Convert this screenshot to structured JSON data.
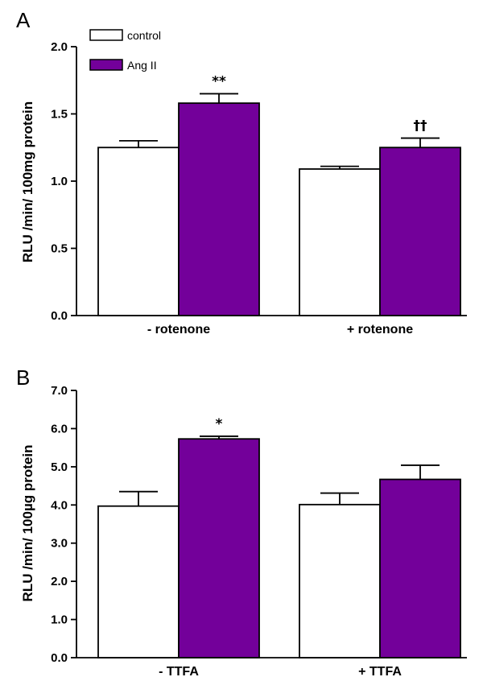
{
  "colors": {
    "control": "#ffffff",
    "ang_ii": "#73009a",
    "stroke": "#000000"
  },
  "legend": {
    "placement": "top-left",
    "items": [
      {
        "label": "control",
        "color": "#ffffff"
      },
      {
        "label": "Ang II",
        "color": "#73009a"
      }
    ]
  },
  "chart_data": [
    {
      "type": "bar",
      "panel": "A",
      "ylabel": "RLU /min/ 100mg protein",
      "ylim": [
        0,
        2.0
      ],
      "yticks": [
        0.0,
        0.5,
        1.0,
        1.5,
        2.0
      ],
      "ytick_labels": [
        "0.0",
        "0.5",
        "1.0",
        "1.5",
        "2.0"
      ],
      "categories": [
        "- rotenone",
        "+ rotenone"
      ],
      "series": [
        {
          "name": "control",
          "values": [
            1.25,
            1.09
          ],
          "errors": [
            0.05,
            0.02
          ]
        },
        {
          "name": "Ang II",
          "values": [
            1.58,
            1.25
          ],
          "errors": [
            0.07,
            0.07
          ]
        }
      ],
      "annotations": [
        {
          "series": "Ang II",
          "category": 0,
          "text": "**"
        },
        {
          "series": "Ang II",
          "category": 1,
          "text": "††"
        }
      ]
    },
    {
      "type": "bar",
      "panel": "B",
      "ylabel": "RLU /min/ 100µg protein",
      "ylim": [
        0,
        7.0
      ],
      "yticks": [
        0.0,
        1.0,
        2.0,
        3.0,
        4.0,
        5.0,
        6.0,
        7.0
      ],
      "ytick_labels": [
        "0.0",
        "1.0",
        "2.0",
        "3.0",
        "4.0",
        "5.0",
        "6.0",
        "7.0"
      ],
      "categories": [
        "- TTFA",
        "+ TTFA"
      ],
      "series": [
        {
          "name": "control",
          "values": [
            3.97,
            4.01
          ],
          "errors": [
            0.38,
            0.3
          ]
        },
        {
          "name": "Ang II",
          "values": [
            5.73,
            4.67
          ],
          "errors": [
            0.07,
            0.37
          ]
        }
      ],
      "annotations": [
        {
          "series": "Ang II",
          "category": 0,
          "text": "*"
        }
      ]
    }
  ]
}
